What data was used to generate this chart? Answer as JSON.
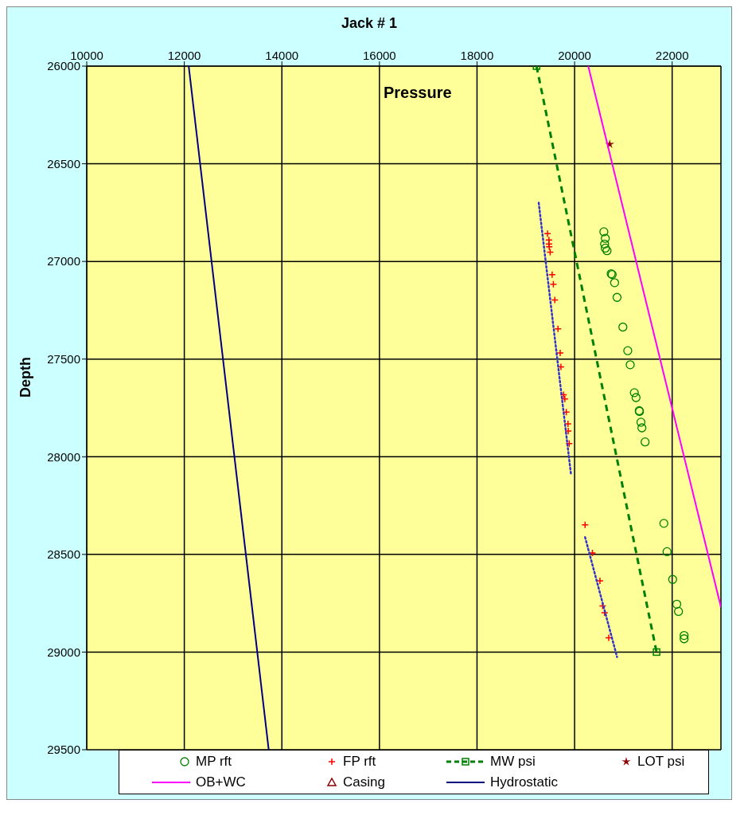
{
  "chart_data": {
    "type": "scatter",
    "title": "Jack # 1",
    "xlabel": "Pressure",
    "ylabel": "Depth",
    "xlim": [
      10000,
      23000
    ],
    "xticks": [
      10000,
      12000,
      14000,
      16000,
      18000,
      20000,
      22000
    ],
    "ylim": [
      29500,
      26000
    ],
    "yticks": [
      26000,
      26500,
      27000,
      27500,
      28000,
      28500,
      29000,
      29500
    ],
    "grid": true,
    "legend": "bottom",
    "series": [
      {
        "name": "MP rft",
        "color": "#008000",
        "marker": "circle",
        "x": [
          20600,
          20630,
          20615,
          20630,
          20665,
          20750,
          20770,
          20820,
          20870,
          20990,
          21090,
          21140,
          21225,
          21260,
          21325,
          21330,
          21360,
          21380,
          21445,
          21830,
          21895,
          22010,
          22095,
          22130,
          22245,
          22245
        ],
        "values": [
          26848,
          26882,
          26911,
          26932,
          26945,
          27063,
          27067,
          27109,
          27184,
          27336,
          27457,
          27529,
          27672,
          27697,
          27764,
          27768,
          27823,
          27852,
          27924,
          28341,
          28486,
          28628,
          28755,
          28792,
          28915,
          28932
        ]
      },
      {
        "name": "FP rft",
        "color": "#ff0000",
        "marker": "cross",
        "x": [
          19445,
          19475,
          19475,
          19480,
          19500,
          19540,
          19565,
          19595,
          19660,
          19705,
          19720,
          19775,
          19800,
          19830,
          19865,
          19870,
          19890,
          20215,
          20365,
          20520,
          20575,
          20615,
          20700
        ],
        "values": [
          26858,
          26890,
          26911,
          26925,
          26953,
          27068,
          27117,
          27197,
          27345,
          27469,
          27540,
          27683,
          27704,
          27771,
          27832,
          27868,
          27933,
          28349,
          28492,
          28635,
          28764,
          28798,
          28927
        ]
      },
      {
        "name": "MW psi",
        "type": "line",
        "color": "#008000",
        "marker": "square",
        "line_style": "dashed",
        "x": [
          19220,
          21680
        ],
        "values": [
          26000,
          29000
        ]
      },
      {
        "name": "LOT psi",
        "color": "#8b0000",
        "marker": "star",
        "x": [
          20720
        ],
        "values": [
          26400
        ]
      },
      {
        "name": "OB+WC",
        "type": "line",
        "color": "#ff00ff",
        "marker": "none",
        "line_style": "solid",
        "x": [
          20280,
          23000
        ],
        "values": [
          26000,
          28770
        ]
      },
      {
        "name": "Casing",
        "color": "#8b0000",
        "marker": "triangle"
      },
      {
        "name": "Hydrostatic",
        "type": "line",
        "color": "#000080",
        "marker": "none",
        "line_style": "solid",
        "x": [
          12090,
          13730
        ],
        "values": [
          26000,
          29500
        ]
      },
      {
        "type": "line",
        "color": "#3333cc",
        "marker": "none",
        "line_style": "dotted",
        "x": [
          19265,
          19925
        ],
        "values": [
          26700,
          28088
        ]
      },
      {
        "type": "line",
        "color": "#3333cc",
        "marker": "none",
        "line_style": "dotted",
        "x": [
          20215,
          20870
        ],
        "values": [
          28412,
          29025
        ]
      }
    ]
  }
}
